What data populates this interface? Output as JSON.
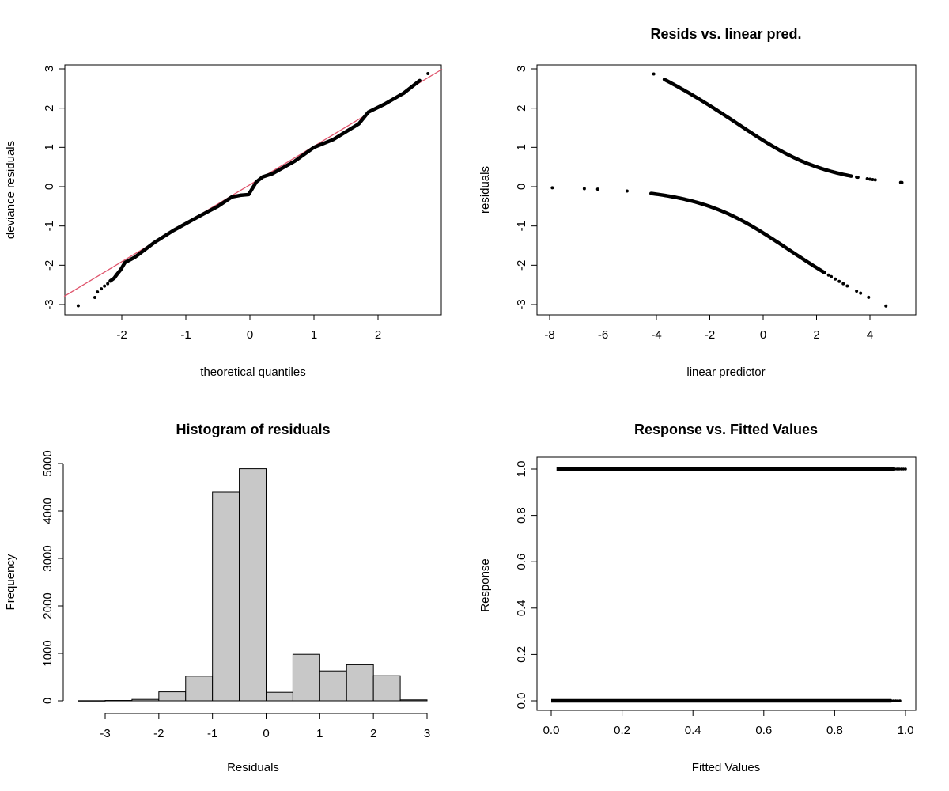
{
  "chart_data": [
    {
      "type": "scatter",
      "title": "",
      "xlabel": "theoretical quantiles",
      "ylabel": "deviance residuals",
      "xlim": [
        -2.9,
        3.0
      ],
      "ylim": [
        -3.2,
        3.2
      ],
      "xticks": [
        "-2",
        "-1",
        "0",
        "1",
        "2"
      ],
      "yticks": [
        "-3",
        "-2",
        "-1",
        "0",
        "1",
        "2",
        "3"
      ],
      "reference_line": {
        "intercept": 0.05,
        "slope": 0.98,
        "color": "#DF536B"
      },
      "outlier_points": [
        [
          -2.68,
          -3.03
        ],
        [
          -2.42,
          -2.82
        ],
        [
          -2.38,
          -2.68
        ],
        [
          -2.32,
          -2.6
        ],
        [
          -2.27,
          -2.53
        ],
        [
          -2.22,
          -2.47
        ],
        [
          2.78,
          2.88
        ]
      ],
      "dense_path": [
        [
          -2.18,
          -2.4
        ],
        [
          -2.12,
          -2.33
        ],
        [
          -2.07,
          -2.22
        ],
        [
          -2.02,
          -2.12
        ],
        [
          -1.95,
          -1.93
        ],
        [
          -1.8,
          -1.8
        ],
        [
          -1.5,
          -1.43
        ],
        [
          -1.2,
          -1.12
        ],
        [
          -0.8,
          -0.76
        ],
        [
          -0.5,
          -0.5
        ],
        [
          -0.28,
          -0.26
        ],
        [
          -0.15,
          -0.22
        ],
        [
          -0.02,
          -0.2
        ],
        [
          0.04,
          -0.04
        ],
        [
          0.1,
          0.12
        ],
        [
          0.2,
          0.25
        ],
        [
          0.35,
          0.33
        ],
        [
          0.7,
          0.65
        ],
        [
          1.0,
          1.0
        ],
        [
          1.3,
          1.2
        ],
        [
          1.7,
          1.6
        ],
        [
          1.85,
          1.9
        ],
        [
          2.1,
          2.1
        ],
        [
          2.4,
          2.38
        ],
        [
          2.65,
          2.7
        ]
      ]
    },
    {
      "type": "scatter",
      "title": "Resids vs. linear pred.",
      "xlabel": "linear predictor",
      "ylabel": "residuals",
      "xlim": [
        -8.4,
        5.7
      ],
      "ylim": [
        -3.2,
        3.2
      ],
      "xticks": [
        "-8",
        "-6",
        "-4",
        "-2",
        "0",
        "2",
        "4"
      ],
      "yticks": [
        "-3",
        "-2",
        "-1",
        "0",
        "1",
        "2",
        "3"
      ],
      "response1_dense_range": [
        -3.7,
        3.3
      ],
      "response1_points": [
        -4.1,
        3.5,
        3.55,
        3.9,
        4.0,
        4.1,
        4.2,
        5.15,
        5.2
      ],
      "response0_dense_range": [
        -4.2,
        2.3
      ],
      "response0_points": [
        -7.9,
        -6.7,
        -6.2,
        -5.1,
        2.45,
        2.55,
        2.7,
        2.85,
        3.0,
        3.15,
        3.5,
        3.65,
        3.95,
        4.6
      ]
    },
    {
      "type": "bar",
      "title": "Histogram of residuals",
      "xlabel": "Residuals",
      "ylabel": "Frequency",
      "bin_edges": [
        -3.5,
        -3,
        -2.5,
        -2,
        -1.5,
        -1,
        -0.5,
        0,
        0.5,
        1,
        1.5,
        2,
        2.5,
        3
      ],
      "values": [
        3,
        8,
        30,
        190,
        520,
        4400,
        4890,
        180,
        980,
        630,
        760,
        530,
        20
      ],
      "xticks": [
        "-3",
        "-2",
        "-1",
        "0",
        "1",
        "2",
        "3"
      ],
      "yticks": [
        "0",
        "1000",
        "2000",
        "3000",
        "4000",
        "5000"
      ],
      "bar_color": "#C8C8C8"
    },
    {
      "type": "scatter",
      "title": "Response vs. Fitted Values",
      "xlabel": "Fitted Values",
      "ylabel": "Response",
      "xlim": [
        -0.04,
        1.04
      ],
      "ylim": [
        -0.04,
        1.04
      ],
      "xticks": [
        "0.0",
        "0.2",
        "0.4",
        "0.6",
        "0.8",
        "1.0"
      ],
      "yticks": [
        "0.0",
        "0.2",
        "0.4",
        "0.6",
        "0.8",
        "1.0"
      ],
      "response1_fitted_range": [
        0.015,
        1.0
      ],
      "response0_fitted_range": [
        0.0,
        0.99
      ]
    }
  ]
}
